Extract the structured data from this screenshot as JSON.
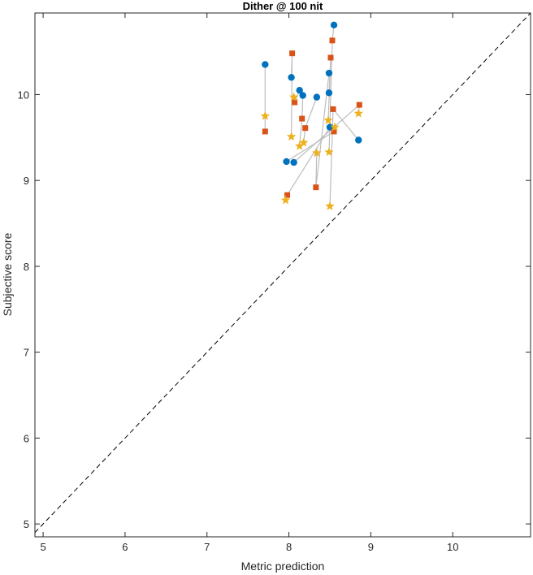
{
  "chart_data": {
    "type": "scatter",
    "title": "Dither @ 100 nit",
    "xlabel": "Metric prediction",
    "ylabel": "Subjective score",
    "xlim": [
      4.9,
      10.95
    ],
    "ylim": [
      4.85,
      10.95
    ],
    "xticks": [
      5,
      6,
      7,
      8,
      9,
      10
    ],
    "yticks": [
      5,
      6,
      7,
      8,
      9,
      10
    ],
    "grid": false,
    "legend": "none",
    "reference_line": {
      "type": "identity",
      "style": "dashed",
      "color": "#000000"
    },
    "connector_color": "#bdbdbd",
    "series": [
      {
        "marker": "circle",
        "color": "#0072BD",
        "x": [
          7.71,
          8.03,
          8.13,
          8.17,
          8.34,
          8.49,
          8.49,
          8.55,
          8.85,
          7.97,
          8.06,
          8.5
        ],
        "y": [
          10.35,
          10.2,
          10.05,
          9.99,
          9.97,
          10.25,
          10.02,
          10.81,
          9.47,
          9.22,
          9.21,
          9.62
        ]
      },
      {
        "marker": "square",
        "color": "#D95319",
        "x": [
          7.71,
          8.04,
          8.07,
          8.16,
          8.2,
          8.33,
          8.51,
          8.53,
          8.54,
          8.55,
          8.86,
          7.98
        ],
        "y": [
          9.57,
          10.48,
          9.91,
          9.72,
          9.61,
          8.92,
          10.43,
          10.63,
          9.83,
          9.57,
          9.88,
          8.83
        ]
      },
      {
        "marker": "pentagram",
        "color": "#EDB120",
        "x": [
          7.71,
          8.03,
          8.06,
          8.13,
          8.18,
          8.34,
          8.48,
          8.49,
          8.5,
          8.56,
          8.85,
          7.96
        ],
        "y": [
          9.75,
          9.51,
          9.97,
          9.4,
          9.44,
          9.32,
          9.7,
          9.33,
          8.7,
          9.62,
          9.78,
          8.77
        ]
      }
    ]
  }
}
